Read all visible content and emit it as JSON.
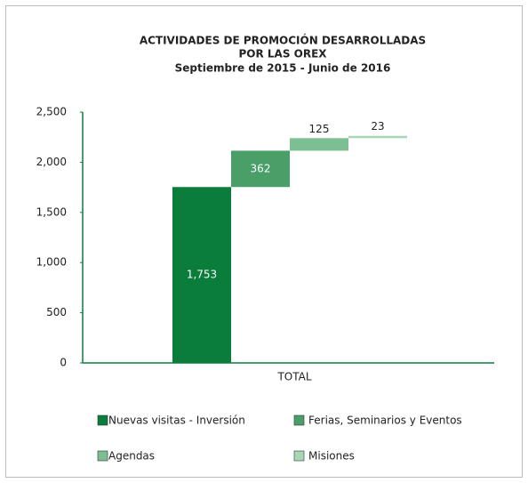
{
  "chart_data": {
    "type": "waterfall",
    "title": [
      "ACTIVIDADES DE PROMOCIÓN DESARROLLADAS",
      "POR LAS OREX"
    ],
    "subtitle": "Septiembre de 2015 - Junio de 2016",
    "categories": [
      "TOTAL"
    ],
    "series": [
      {
        "name": "Nuevas visitas - Inversión",
        "color": "#0b7d3b",
        "values": [
          1753
        ],
        "value_labels": [
          "1,753"
        ]
      },
      {
        "name": "Ferias, Seminarios y Eventos",
        "color": "#4a9f68",
        "values": [
          362
        ]
      },
      {
        "name": "Agendas",
        "color": "#7bbf92",
        "values": [
          125
        ]
      },
      {
        "name": "Misiones",
        "color": "#a8d6b6",
        "values": [
          23
        ]
      }
    ],
    "ylim": [
      0,
      2500
    ],
    "yticks": [
      0,
      500,
      {
        "value": 1000,
        "label": "1,000"
      },
      {
        "value": 1500,
        "label": "1,500"
      },
      {
        "value": 2000,
        "label": "2,000"
      },
      {
        "value": 2500,
        "label": "2,500"
      }
    ],
    "grid": false
  }
}
